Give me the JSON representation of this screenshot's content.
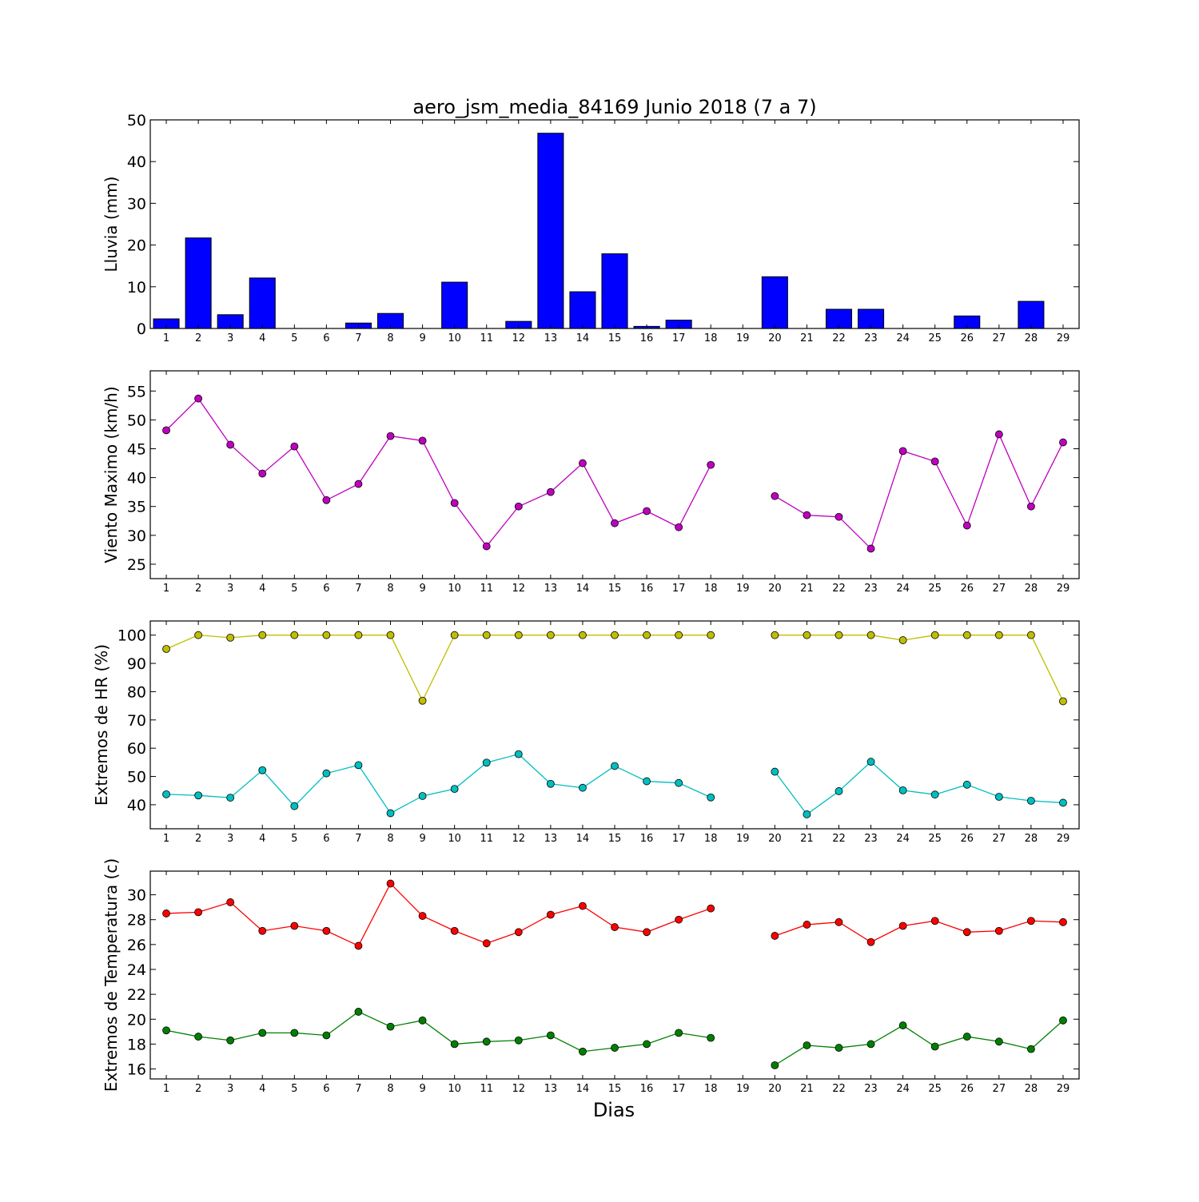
{
  "title": "aero_jsm_media_84169 Junio 2018  (7 a 7)",
  "xlabel": "Dias",
  "chart_data": [
    {
      "type": "bar",
      "ylabel": "Lluvia (mm)",
      "x": [
        1,
        2,
        3,
        4,
        5,
        6,
        7,
        8,
        9,
        10,
        11,
        12,
        13,
        14,
        15,
        16,
        17,
        18,
        19,
        20,
        21,
        22,
        23,
        24,
        25,
        26,
        27,
        28,
        29
      ],
      "ylim": [
        0,
        50
      ],
      "yticks": [
        0,
        10,
        20,
        30,
        40,
        50
      ],
      "series": [
        {
          "color": "#0000ff",
          "values": [
            2.3,
            21.7,
            3.3,
            12.1,
            0,
            0,
            1.3,
            3.6,
            0,
            11.1,
            0,
            1.7,
            46.8,
            8.8,
            17.9,
            0.5,
            2.0,
            0,
            0,
            12.4,
            0,
            4.6,
            4.6,
            0,
            0,
            3.0,
            0,
            6.5,
            0
          ]
        }
      ]
    },
    {
      "type": "line",
      "ylabel": "Viento Maximo (km/h)",
      "x": [
        1,
        2,
        3,
        4,
        5,
        6,
        7,
        8,
        9,
        10,
        11,
        12,
        13,
        14,
        15,
        16,
        17,
        18,
        19,
        20,
        21,
        22,
        23,
        24,
        25,
        26,
        27,
        28,
        29
      ],
      "ylim": [
        22.5,
        58.5
      ],
      "yticks": [
        25,
        30,
        35,
        40,
        45,
        50,
        55
      ],
      "series": [
        {
          "color": "#bf00bf",
          "values": [
            48.2,
            53.7,
            45.7,
            40.7,
            45.4,
            36.1,
            38.9,
            47.2,
            46.4,
            35.6,
            28.1,
            35.0,
            37.5,
            42.5,
            32.1,
            34.2,
            31.4,
            42.2,
            null,
            36.8,
            33.5,
            33.2,
            27.7,
            44.6,
            42.8,
            31.7,
            47.5,
            35.0,
            46.1
          ]
        }
      ]
    },
    {
      "type": "line",
      "ylabel": "Extremos de HR (%)",
      "x": [
        1,
        2,
        3,
        4,
        5,
        6,
        7,
        8,
        9,
        10,
        11,
        12,
        13,
        14,
        15,
        16,
        17,
        18,
        19,
        20,
        21,
        22,
        23,
        24,
        25,
        26,
        27,
        28,
        29
      ],
      "ylim": [
        31.5,
        105
      ],
      "yticks": [
        40,
        50,
        60,
        70,
        80,
        90,
        100
      ],
      "series": [
        {
          "color": "#bfbf00",
          "values": [
            95.1,
            100,
            99.1,
            100,
            100,
            100,
            100,
            100,
            76.8,
            100,
            100,
            100,
            100,
            100,
            100,
            100,
            100,
            100,
            null,
            100,
            100,
            100,
            100,
            98.2,
            100,
            100,
            100,
            100,
            76.6
          ]
        },
        {
          "color": "#00bfbf",
          "values": [
            43.7,
            43.3,
            42.5,
            52.2,
            39.5,
            51.1,
            54.0,
            37.0,
            43.1,
            45.6,
            54.9,
            57.9,
            47.4,
            46.0,
            53.7,
            48.3,
            47.7,
            42.6,
            null,
            51.7,
            36.6,
            44.8,
            55.2,
            45.1,
            43.6,
            47.1,
            42.8,
            41.4,
            40.7
          ]
        }
      ]
    },
    {
      "type": "line",
      "ylabel": "Extremos de Temperatura (c)",
      "x": [
        1,
        2,
        3,
        4,
        5,
        6,
        7,
        8,
        9,
        10,
        11,
        12,
        13,
        14,
        15,
        16,
        17,
        18,
        19,
        20,
        21,
        22,
        23,
        24,
        25,
        26,
        27,
        28,
        29
      ],
      "ylim": [
        15.2,
        31.9
      ],
      "yticks": [
        16,
        18,
        20,
        22,
        24,
        26,
        28,
        30
      ],
      "series": [
        {
          "color": "#ff0000",
          "values": [
            28.5,
            28.6,
            29.4,
            27.1,
            27.5,
            27.1,
            25.9,
            30.9,
            28.3,
            27.1,
            26.1,
            27.0,
            28.4,
            29.1,
            27.4,
            27.0,
            28.0,
            28.9,
            null,
            26.7,
            27.6,
            27.8,
            26.2,
            27.5,
            27.9,
            27.0,
            27.1,
            27.9,
            27.8
          ]
        },
        {
          "color": "#008000",
          "values": [
            19.1,
            18.6,
            18.3,
            18.9,
            18.9,
            18.7,
            20.6,
            19.4,
            19.9,
            18.0,
            18.2,
            18.3,
            18.7,
            17.4,
            17.7,
            18.0,
            18.9,
            18.5,
            null,
            16.3,
            17.9,
            17.7,
            18.0,
            19.5,
            17.8,
            18.6,
            18.2,
            17.6,
            19.9
          ]
        }
      ]
    }
  ]
}
